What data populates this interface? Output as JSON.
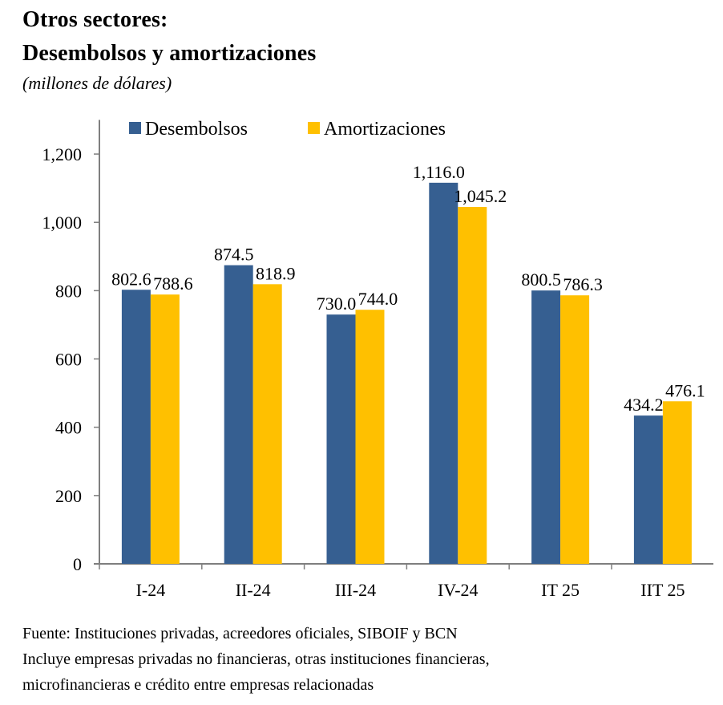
{
  "header": {
    "title_line1": "Otros sectores:",
    "title_line2": "Desembolsos y amortizaciones",
    "subtitle": "(millones de dólares)"
  },
  "footer": {
    "source": "Fuente:  Instituciones privadas, acreedores oficiales, SIBOIF y BCN",
    "note_line1": "Incluye empresas privadas no financieras, otras instituciones financieras,",
    "note_line2": "microfinancieras e crédito entre empresas relacionadas"
  },
  "chart_data": {
    "type": "bar",
    "title": "Otros sectores: Desembolsos y amortizaciones",
    "subtitle": "(millones de dólares)",
    "xlabel": "",
    "ylabel": "",
    "categories": [
      "I-24",
      "II-24",
      "III-24",
      "IV-24",
      "IT 25",
      "IIT 25"
    ],
    "series": [
      {
        "name": "Desembolsos",
        "color": "#365F91",
        "values": [
          802.6,
          874.5,
          730.0,
          1116.0,
          800.5,
          434.2
        ],
        "labels": [
          "802.6",
          "874.5",
          "730.0",
          "1,116.0",
          "800.5",
          "434.2"
        ]
      },
      {
        "name": "Amortizaciones",
        "color": "#FFC000",
        "values": [
          788.6,
          818.9,
          744.0,
          1045.2,
          786.3,
          476.1
        ],
        "labels": [
          "788.6",
          "818.9",
          "744.0",
          "1,045.2",
          "786.3",
          "476.1"
        ]
      }
    ],
    "ylim": [
      0,
      1300
    ],
    "yticks": [
      0,
      200,
      400,
      600,
      800,
      1000,
      1200
    ],
    "ytick_labels": [
      "0",
      "200",
      "400",
      "600",
      "800",
      "1,000",
      "1,200"
    ],
    "grid": false,
    "legend": "top",
    "axis_color": "#7F7F7F"
  }
}
